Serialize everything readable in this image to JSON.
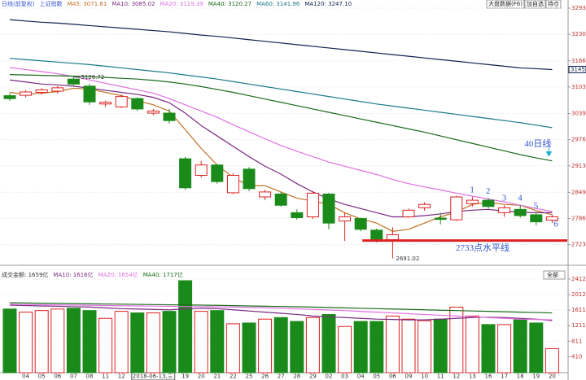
{
  "header": {
    "chart_label": "日线(前复权)",
    "symbol": "上证指数",
    "ma_legend": [
      {
        "text": "MA5: 3071.61",
        "color": "#c07020"
      },
      {
        "text": "MA10: 3085.02",
        "color": "#7a2a80"
      },
      {
        "text": "MA20: 3119.39",
        "color": "#e070e0"
      },
      {
        "text": "MA40: 3120.27",
        "color": "#1a6a1a"
      },
      {
        "text": "MA60: 3141.96",
        "color": "#1a7a8a"
      },
      {
        "text": "MA120: 3247.10",
        "color": "#102050"
      }
    ],
    "toolbar": [
      "大盘数据(F6)",
      "加自选",
      "持仓"
    ]
  },
  "chart_data": [
    {
      "type": "candlestick",
      "categories": [
        null,
        "04",
        "05",
        "06",
        "07",
        "08",
        "11",
        "12",
        "2018-06-13,三",
        null,
        null,
        "19",
        "20",
        "21",
        "22",
        "25",
        "26",
        "27",
        "28",
        "29",
        "02",
        "03",
        "04",
        "05",
        "06",
        "09",
        "10",
        "11",
        "12",
        "13",
        "16",
        "17",
        "18",
        "19",
        "20"
      ],
      "open": [
        3082,
        3083,
        3090,
        3093,
        3122,
        3105,
        3062,
        3055,
        3075,
        3040,
        3040,
        2930,
        2890,
        2915,
        2848,
        2905,
        2838,
        2845,
        2800,
        2790,
        2845,
        2780,
        2786,
        2758,
        2735,
        2790,
        2812,
        2787,
        2783,
        2822,
        2830,
        2800,
        2808,
        2795,
        2782
      ],
      "high": [
        3088,
        3095,
        3100,
        3105,
        3126.72,
        3110,
        3070,
        3085,
        3078,
        3050,
        3050,
        2935,
        2925,
        2917,
        2895,
        2910,
        2855,
        2850,
        2808,
        2852,
        2848,
        2800,
        2788,
        2762,
        2765,
        2810,
        2825,
        2800,
        2841,
        2838,
        2835,
        2818,
        2818,
        2800,
        2795
      ],
      "low": [
        3070,
        3078,
        3085,
        3087,
        3107,
        3060,
        3055,
        3052,
        3045,
        3035,
        3015,
        2855,
        2885,
        2870,
        2845,
        2852,
        2830,
        2815,
        2783,
        2785,
        2760,
        2732,
        2755,
        2728,
        2691.02,
        2788,
        2805,
        2772,
        2780,
        2815,
        2810,
        2790,
        2788,
        2770,
        2775
      ],
      "close": [
        3075,
        3091,
        3096,
        3101,
        3110,
        3067,
        3066,
        3080,
        3050,
        3045,
        3022,
        2860,
        2915,
        2875,
        2890,
        2858,
        2850,
        2818,
        2788,
        2847,
        2775,
        2790,
        2760,
        2735,
        2747,
        2806,
        2820,
        2784,
        2838,
        2830,
        2815,
        2812,
        2793,
        2778,
        2790
      ],
      "up_color": "#e02020",
      "down_color": "#1a8a1a",
      "lines": [
        {
          "name": "MA5",
          "color": "#c07020",
          "values": [
            3090,
            3085,
            3088,
            3092,
            3100,
            3098,
            3090,
            3082,
            3070,
            3060,
            3045,
            3000,
            2955,
            2915,
            2885,
            2865,
            2865,
            2850,
            2835,
            2828,
            2820,
            2800,
            2785,
            2775,
            2755,
            2760,
            2775,
            2790,
            2802,
            2820,
            2825,
            2820,
            2818,
            2805,
            2795
          ]
        },
        {
          "name": "MA10",
          "color": "#7a2a80",
          "values": [
            3120,
            3115,
            3110,
            3108,
            3105,
            3100,
            3095,
            3090,
            3085,
            3078,
            3065,
            3040,
            3010,
            2985,
            2960,
            2935,
            2912,
            2893,
            2870,
            2850,
            2833,
            2820,
            2810,
            2800,
            2790,
            2790,
            2793,
            2797,
            2803,
            2806,
            2808,
            2804,
            2801,
            2800,
            2800
          ]
        },
        {
          "name": "MA20",
          "color": "#e070e0",
          "values": [
            3150,
            3145,
            3140,
            3135,
            3128,
            3120,
            3112,
            3104,
            3096,
            3088,
            3075,
            3060,
            3045,
            3030,
            3012,
            2995,
            2978,
            2962,
            2948,
            2935,
            2922,
            2912,
            2902,
            2892,
            2880,
            2870,
            2862,
            2855,
            2847,
            2840,
            2833,
            2826,
            2818,
            2810,
            2803
          ]
        },
        {
          "name": "MA40",
          "color": "#1a6a1a",
          "values": [
            3133,
            3132,
            3131,
            3130,
            3129,
            3128,
            3126,
            3124,
            3122,
            3119,
            3115,
            3110,
            3104,
            3097,
            3090,
            3082,
            3074,
            3066,
            3058,
            3050,
            3042,
            3034,
            3026,
            3018,
            3010,
            3002,
            2994,
            2985,
            2976,
            2967,
            2958,
            2949,
            2940,
            2932,
            2925
          ],
          "note": "40日线"
        },
        {
          "name": "MA60",
          "color": "#1a7a8a",
          "values": [
            3172,
            3169,
            3166,
            3163,
            3160,
            3157,
            3153,
            3149,
            3145,
            3141,
            3137,
            3132,
            3127,
            3122,
            3116,
            3110,
            3104,
            3098,
            3092,
            3086,
            3080,
            3074,
            3068,
            3062,
            3057,
            3052,
            3047,
            3042,
            3037,
            3032,
            3027,
            3022,
            3017,
            3011,
            3005
          ]
        },
        {
          "name": "MA120",
          "color": "#102050",
          "values": [
            3265,
            3262,
            3259,
            3257,
            3254,
            3251,
            3248,
            3245,
            3242,
            3239,
            3236,
            3232,
            3228,
            3225,
            3221,
            3217,
            3213,
            3209,
            3205,
            3201,
            3197,
            3193,
            3189,
            3185,
            3181,
            3177,
            3173,
            3169,
            3165,
            3161,
            3157,
            3153,
            3149,
            3147,
            3145
          ],
          "end_label": "3145"
        }
      ],
      "high_label": "3126.72",
      "low_label": "2691.02",
      "hline": {
        "value": 2733,
        "label": "2733点水平线",
        "color": "#e02020"
      },
      "wave_labels": [
        "1",
        "2",
        "3",
        "4",
        "5",
        "6"
      ],
      "ylim": [
        2689,
        3293
      ],
      "yticks": [
        3293,
        3230,
        3166,
        3103,
        3039,
        2976,
        2913,
        2849,
        2786,
        2723
      ],
      "grid": true
    },
    {
      "type": "bar",
      "legend": [
        {
          "text": "成交金额: 1659亿",
          "color": "#333"
        },
        {
          "text": "MA10: 1616亿",
          "color": "#7a2a80"
        },
        {
          "text": "MA20: 1654亿",
          "color": "#e070e0"
        },
        {
          "text": "MA40: 1717亿",
          "color": "#1a6a1a"
        }
      ],
      "selector": "全部",
      "values": [
        1640,
        1560,
        1600,
        1640,
        1660,
        1600,
        1400,
        1580,
        1540,
        1540,
        1580,
        2370,
        1580,
        1600,
        1260,
        1280,
        1380,
        1420,
        1320,
        1420,
        1500,
        1190,
        1320,
        1320,
        1460,
        1380,
        1340,
        1380,
        1690,
        1460,
        1240,
        1240,
        1360,
        1280,
        620
      ],
      "lines": [
        {
          "name": "MA10",
          "color": "#7a2a80",
          "values": [
            1740,
            1730,
            1720,
            1710,
            1700,
            1690,
            1670,
            1650,
            1640,
            1630,
            1620,
            1640,
            1660,
            1650,
            1620,
            1590,
            1560,
            1530,
            1500,
            1460,
            1440,
            1420,
            1400,
            1380,
            1370,
            1360,
            1360,
            1380,
            1400,
            1420,
            1430,
            1420,
            1400,
            1380,
            1340
          ]
        },
        {
          "name": "MA20",
          "color": "#e070e0",
          "values": [
            1760,
            1755,
            1750,
            1745,
            1740,
            1735,
            1730,
            1725,
            1720,
            1715,
            1710,
            1705,
            1700,
            1695,
            1690,
            1680,
            1670,
            1660,
            1645,
            1630,
            1615,
            1600,
            1580,
            1560,
            1540,
            1520,
            1500,
            1480,
            1460,
            1440,
            1420,
            1400,
            1380,
            1370,
            1360
          ]
        },
        {
          "name": "MA40",
          "color": "#1a6a1a",
          "values": [
            1800,
            1795,
            1790,
            1785,
            1780,
            1775,
            1770,
            1765,
            1760,
            1755,
            1750,
            1745,
            1740,
            1735,
            1728,
            1720,
            1712,
            1705,
            1698,
            1690,
            1680,
            1670,
            1660,
            1650,
            1640,
            1630,
            1620,
            1610,
            1600,
            1590,
            1580,
            1570,
            1560,
            1550,
            1540
          ]
        }
      ],
      "ylim": [
        0,
        2600
      ],
      "yticks": [
        410,
        811,
        1211,
        1611,
        2012,
        2412
      ],
      "grid": true
    }
  ]
}
